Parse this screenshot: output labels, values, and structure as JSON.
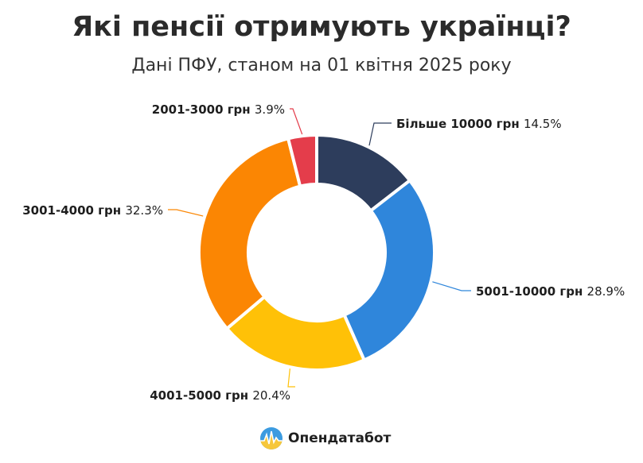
{
  "header": {
    "title": "Які пенсії отримують українці?",
    "subtitle": "Дані ПФУ, станом на 01 квітня 2025 року"
  },
  "chart_data": {
    "type": "pie",
    "variant": "donut",
    "slices": [
      {
        "name": "Більше 10000 грн",
        "value": 14.5,
        "label": "14.5%",
        "color": "#2d3d5c"
      },
      {
        "name": "5001-10000 грн",
        "value": 28.9,
        "label": "28.9%",
        "color": "#2f86db"
      },
      {
        "name": "4001-5000 грн",
        "value": 20.4,
        "label": "20.4%",
        "color": "#ffc107"
      },
      {
        "name": "3001-4000 грн",
        "value": 32.3,
        "label": "32.3%",
        "color": "#fb8603"
      },
      {
        "name": "2001-3000 грн",
        "value": 3.9,
        "label": "3.9%",
        "color": "#e43d4b"
      }
    ],
    "start": "12 o'clock",
    "direction": "clockwise"
  },
  "brand": {
    "name": "Опендатабот",
    "logo_icon": "opendatabot-logo-icon"
  }
}
